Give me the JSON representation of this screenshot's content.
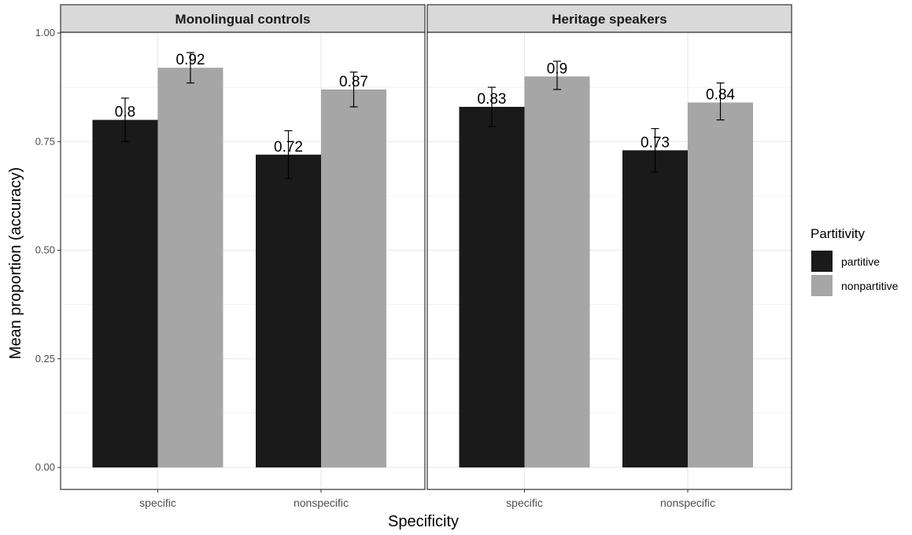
{
  "chart_data": {
    "type": "bar",
    "ylabel": "Mean proportion (accuracy)",
    "xlabel": "Specificity",
    "ylim": [
      0,
      1.0
    ],
    "y_ticks": [
      "0.00",
      "0.25",
      "0.50",
      "0.75",
      "1.00"
    ],
    "y_tick_values": [
      0,
      0.25,
      0.5,
      0.75,
      1.0
    ],
    "categories": [
      "specific",
      "nonspecific"
    ],
    "grid": true,
    "legend": {
      "title": "Partitivity",
      "placement": "right",
      "entries": [
        {
          "name": "partitive",
          "color": "#1a1a1a"
        },
        {
          "name": "nonpartitive",
          "color": "#a6a6a6"
        }
      ]
    },
    "panels": [
      {
        "title": "Monolingual controls",
        "series": [
          {
            "name": "partitive",
            "values": [
              0.8,
              0.72
            ],
            "labels": [
              "0.8",
              "0.72"
            ],
            "error_low": [
              0.75,
              0.665
            ],
            "error_high": [
              0.85,
              0.775
            ]
          },
          {
            "name": "nonpartitive",
            "values": [
              0.92,
              0.87
            ],
            "labels": [
              "0.92",
              "0.87"
            ],
            "error_low": [
              0.885,
              0.83
            ],
            "error_high": [
              0.955,
              0.91
            ]
          }
        ]
      },
      {
        "title": "Heritage speakers",
        "series": [
          {
            "name": "partitive",
            "values": [
              0.83,
              0.73
            ],
            "labels": [
              "0.83",
              "0.73"
            ],
            "error_low": [
              0.785,
              0.68
            ],
            "error_high": [
              0.875,
              0.78
            ]
          },
          {
            "name": "nonpartitive",
            "values": [
              0.9,
              0.84
            ],
            "labels": [
              "0.9",
              "0.84"
            ],
            "error_low": [
              0.87,
              0.8
            ],
            "error_high": [
              0.935,
              0.885
            ]
          }
        ]
      }
    ]
  }
}
